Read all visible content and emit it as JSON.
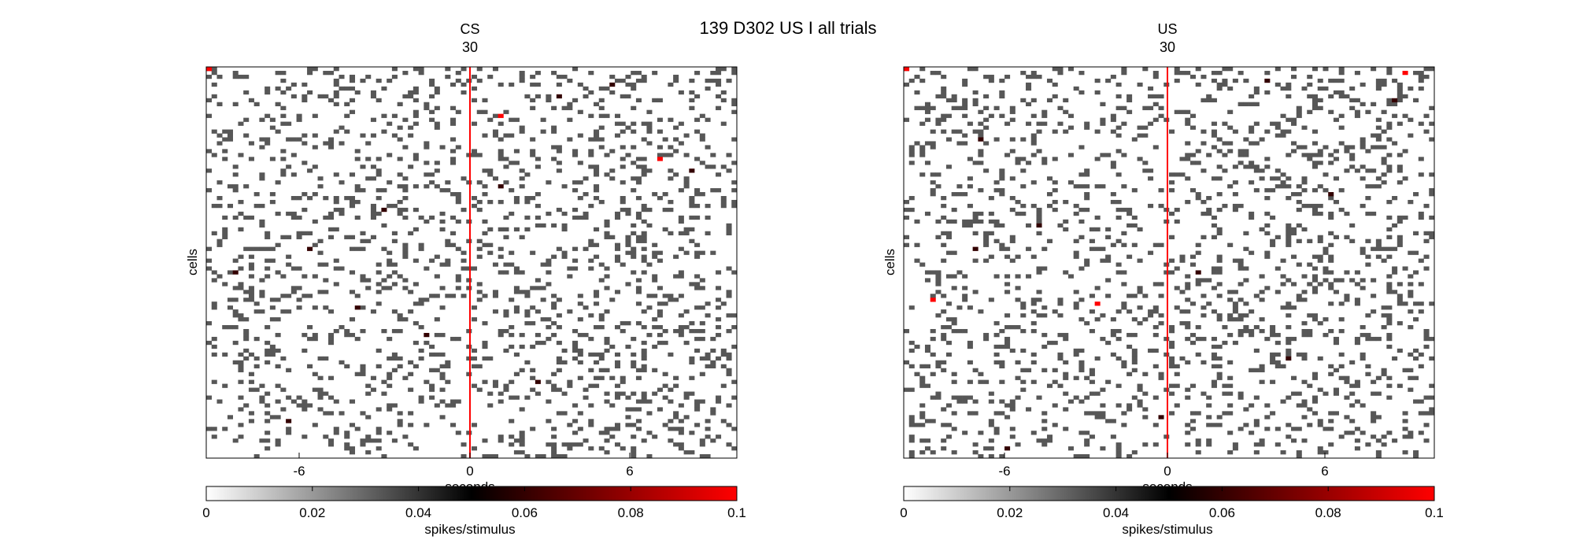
{
  "figure": {
    "suptitle": "139 D302 US I all trials",
    "colorbar_label": "spikes/stimulus",
    "onset_line_color": "#ff0000"
  },
  "chart_data": [
    {
      "type": "heatmap",
      "title": "CS",
      "subtitle": "30",
      "xlabel": "seconds",
      "ylabel": "cells",
      "xlim": [
        -10,
        10
      ],
      "x_ticks": [
        -6,
        0,
        6
      ],
      "x_tick_labels": [
        "-6",
        "0",
        "6"
      ],
      "rows": 100,
      "bins": 100,
      "event_line_x": 0,
      "clim": [
        0,
        0.1
      ],
      "colorbar_ticks": [
        0,
        0.02,
        0.04,
        0.06,
        0.08,
        0.1
      ],
      "colorbar_tick_labels": [
        "0",
        "0.02",
        "0.04",
        "0.06",
        "0.08",
        "0.1"
      ],
      "colormap": [
        "#ffffff",
        "#000000",
        "#ff0000"
      ],
      "grid": false,
      "typical_cell_value": 0.033,
      "density_pre": 0.15,
      "density_post": 0.17,
      "high_value_cells": [
        {
          "row": 0,
          "bin": 0,
          "value": 0.1
        },
        {
          "row": 12,
          "bin": 55,
          "value": 0.1
        },
        {
          "row": 23,
          "bin": 85,
          "value": 0.1
        },
        {
          "row": 30,
          "bin": 55,
          "value": 0.06
        },
        {
          "row": 52,
          "bin": 5,
          "value": 0.06
        },
        {
          "row": 80,
          "bin": 62,
          "value": 0.06
        },
        {
          "row": 7,
          "bin": 66,
          "value": 0.06
        },
        {
          "row": 36,
          "bin": 33,
          "value": 0.06
        },
        {
          "row": 61,
          "bin": 28,
          "value": 0.06
        },
        {
          "row": 90,
          "bin": 15,
          "value": 0.06
        },
        {
          "row": 26,
          "bin": 91,
          "value": 0.06
        },
        {
          "row": 46,
          "bin": 19,
          "value": 0.06
        },
        {
          "row": 4,
          "bin": 76,
          "value": 0.06
        },
        {
          "row": 68,
          "bin": 41,
          "value": 0.06
        }
      ]
    },
    {
      "type": "heatmap",
      "title": "US",
      "subtitle": "30",
      "xlabel": "seconds",
      "ylabel": "cells",
      "xlim": [
        -10,
        10
      ],
      "x_ticks": [
        -6,
        0,
        6
      ],
      "x_tick_labels": [
        "-6",
        "0",
        "6"
      ],
      "rows": 100,
      "bins": 100,
      "event_line_x": 0,
      "clim": [
        0,
        0.1
      ],
      "colorbar_ticks": [
        0,
        0.02,
        0.04,
        0.06,
        0.08,
        0.1
      ],
      "colorbar_tick_labels": [
        "0",
        "0.02",
        "0.04",
        "0.06",
        "0.08",
        "0.1"
      ],
      "colormap": [
        "#ffffff",
        "#000000",
        "#ff0000"
      ],
      "grid": false,
      "typical_cell_value": 0.033,
      "density_pre": 0.15,
      "density_post": 0.18,
      "high_value_cells": [
        {
          "row": 0,
          "bin": 0,
          "value": 0.1
        },
        {
          "row": 59,
          "bin": 5,
          "value": 0.1
        },
        {
          "row": 60,
          "bin": 36,
          "value": 0.1
        },
        {
          "row": 1,
          "bin": 94,
          "value": 0.1
        },
        {
          "row": 18,
          "bin": 14,
          "value": 0.06
        },
        {
          "row": 46,
          "bin": 13,
          "value": 0.06
        },
        {
          "row": 52,
          "bin": 55,
          "value": 0.06
        },
        {
          "row": 97,
          "bin": 19,
          "value": 0.06
        },
        {
          "row": 89,
          "bin": 48,
          "value": 0.06
        },
        {
          "row": 8,
          "bin": 92,
          "value": 0.06
        },
        {
          "row": 32,
          "bin": 80,
          "value": 0.06
        },
        {
          "row": 74,
          "bin": 72,
          "value": 0.06
        },
        {
          "row": 3,
          "bin": 68,
          "value": 0.06
        },
        {
          "row": 40,
          "bin": 25,
          "value": 0.06
        }
      ]
    }
  ]
}
